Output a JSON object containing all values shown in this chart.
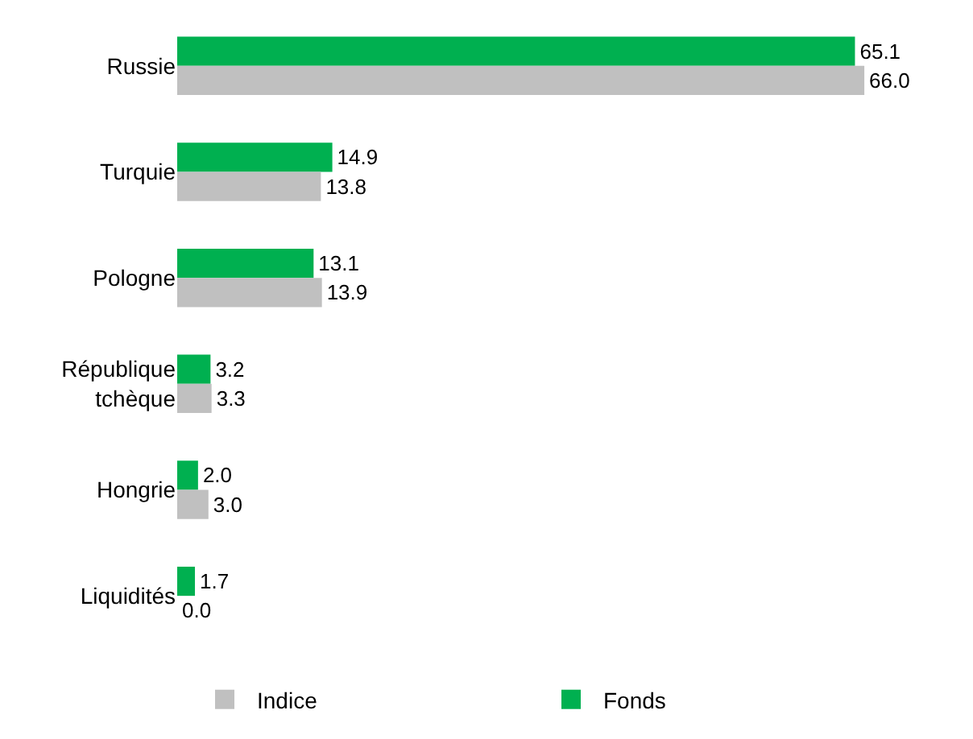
{
  "chart_data": {
    "type": "bar",
    "orientation": "horizontal",
    "categories": [
      "Russie",
      "Turquie",
      "Pologne",
      "République tchèque",
      "Hongrie",
      "Liquidités"
    ],
    "series": [
      {
        "name": "Fonds",
        "color": "#00b050",
        "values": [
          65.1,
          14.9,
          13.1,
          3.2,
          2.0,
          1.7
        ],
        "value_labels": [
          "65.1",
          "14.9",
          "13.1",
          "3.2",
          "2.0",
          "1.7"
        ]
      },
      {
        "name": "Indice",
        "color": "#c0c0c0",
        "values": [
          66.0,
          13.8,
          13.9,
          3.3,
          3.0,
          0.0
        ],
        "value_labels": [
          "66.0",
          "13.8",
          "13.9",
          "3.3",
          "3.0",
          "0.0"
        ]
      }
    ],
    "legend": "bottom",
    "grid": false,
    "tick_labels": "y"
  }
}
